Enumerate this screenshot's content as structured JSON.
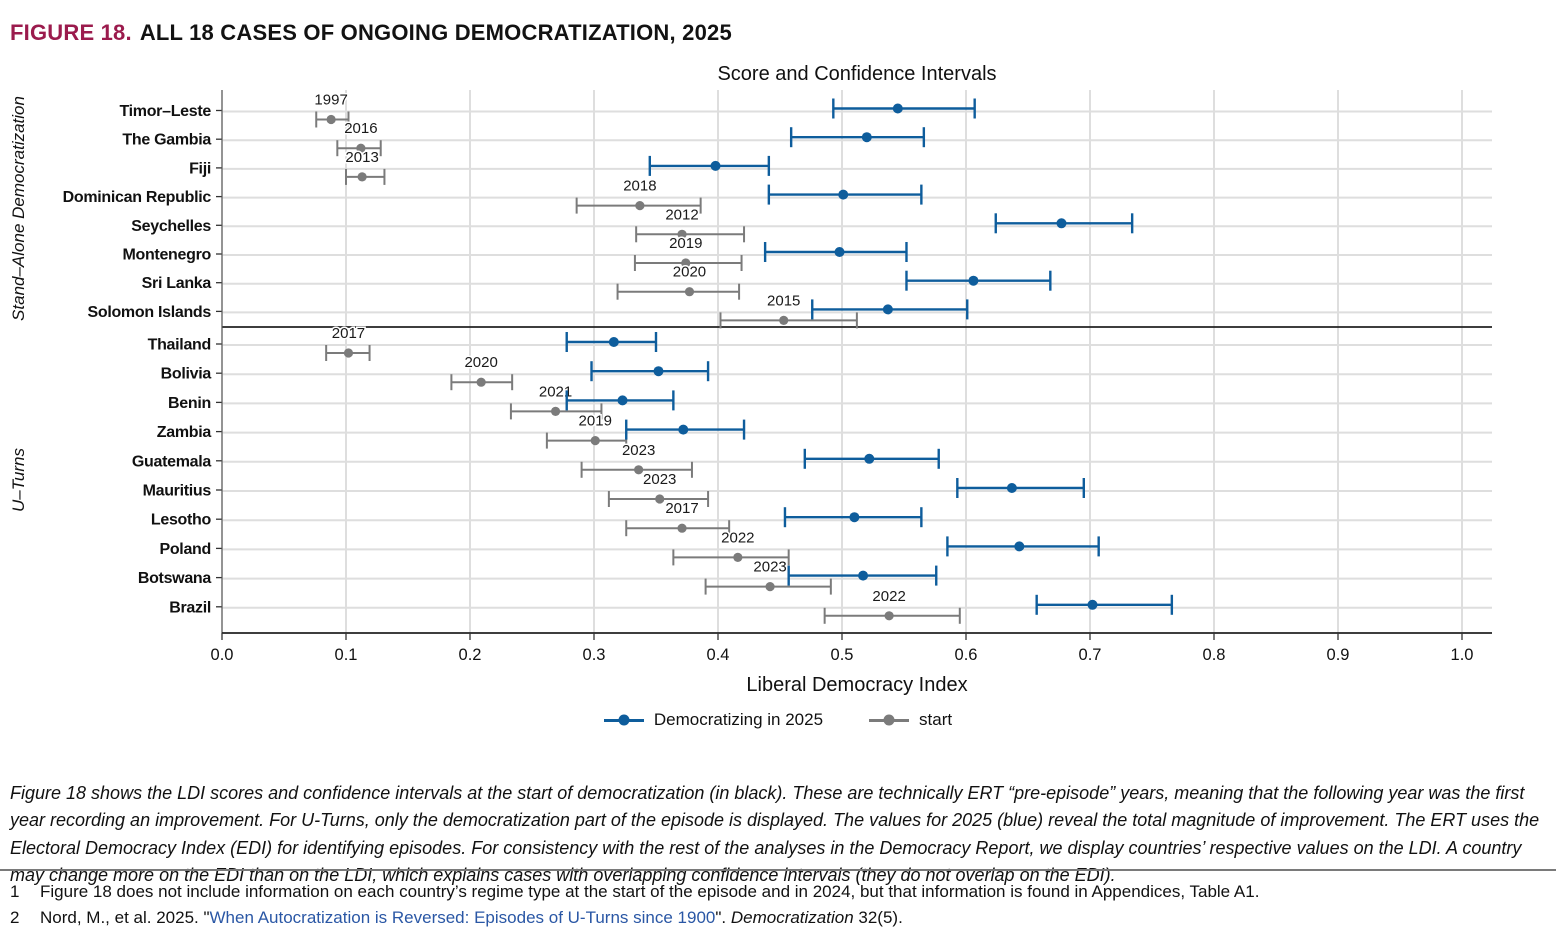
{
  "figure": {
    "label": "FIGURE 18.",
    "title": "ALL 18 CASES OF ONGOING DEMOCRATIZATION, 2025",
    "label_color": "#9b1b4d"
  },
  "chart_data": {
    "type": "scatter",
    "title": "Score and Confidence Intervals",
    "xlabel": "Liberal Democracy Index",
    "xlim": [
      0.0,
      1.0
    ],
    "x_ticks": [
      0.0,
      0.1,
      0.2,
      0.3,
      0.4,
      0.5,
      0.6,
      0.7,
      0.8,
      0.9,
      1.0
    ],
    "grid": true,
    "legend_position": "bottom",
    "legend": [
      {
        "label": "Democratizing in 2025",
        "color": "#0e5d9c"
      },
      {
        "label": "start",
        "color": "#7b7b7b"
      }
    ],
    "colors": {
      "democratizing": "#0e5d9c",
      "start": "#7b7b7b",
      "gridline_vertical": "#c9c9c9",
      "gridline_horizontal": "#dedede",
      "axis": "#222222"
    },
    "panels": [
      {
        "label": "Stand–Alone Democratization",
        "rows": [
          {
            "country": "Timor–Leste",
            "start_year": "1997",
            "start": 0.088,
            "start_ci": [
              0.076,
              0.102
            ],
            "now": 0.545,
            "now_ci": [
              0.493,
              0.607
            ]
          },
          {
            "country": "The Gambia",
            "start_year": "2016",
            "start": 0.112,
            "start_ci": [
              0.093,
              0.128
            ],
            "now": 0.52,
            "now_ci": [
              0.459,
              0.566
            ]
          },
          {
            "country": "Fiji",
            "start_year": "2013",
            "start": 0.113,
            "start_ci": [
              0.1,
              0.131
            ],
            "now": 0.398,
            "now_ci": [
              0.345,
              0.441
            ]
          },
          {
            "country": "Dominican Republic",
            "start_year": "2018",
            "start": 0.337,
            "start_ci": [
              0.286,
              0.386
            ],
            "now": 0.501,
            "now_ci": [
              0.441,
              0.564
            ]
          },
          {
            "country": "Seychelles",
            "start_year": "2012",
            "start": 0.371,
            "start_ci": [
              0.334,
              0.421
            ],
            "now": 0.677,
            "now_ci": [
              0.624,
              0.734
            ]
          },
          {
            "country": "Montenegro",
            "start_year": "2019",
            "start": 0.374,
            "start_ci": [
              0.333,
              0.419
            ],
            "now": 0.498,
            "now_ci": [
              0.438,
              0.552
            ]
          },
          {
            "country": "Sri Lanka",
            "start_year": "2020",
            "start": 0.377,
            "start_ci": [
              0.319,
              0.417
            ],
            "now": 0.606,
            "now_ci": [
              0.552,
              0.668
            ]
          },
          {
            "country": "Solomon Islands",
            "start_year": "2015",
            "start": 0.453,
            "start_ci": [
              0.402,
              0.512
            ],
            "now": 0.537,
            "now_ci": [
              0.476,
              0.601
            ]
          }
        ]
      },
      {
        "label": "U–Turns",
        "rows": [
          {
            "country": "Thailand",
            "start_year": "2017",
            "start": 0.102,
            "start_ci": [
              0.084,
              0.119
            ],
            "now": 0.316,
            "now_ci": [
              0.278,
              0.35
            ]
          },
          {
            "country": "Bolivia",
            "start_year": "2020",
            "start": 0.209,
            "start_ci": [
              0.185,
              0.234
            ],
            "now": 0.352,
            "now_ci": [
              0.298,
              0.392
            ]
          },
          {
            "country": "Benin",
            "start_year": "2021",
            "start": 0.269,
            "start_ci": [
              0.233,
              0.306
            ],
            "now": 0.323,
            "now_ci": [
              0.278,
              0.364
            ]
          },
          {
            "country": "Zambia",
            "start_year": "2019",
            "start": 0.301,
            "start_ci": [
              0.262,
              0.326
            ],
            "now": 0.372,
            "now_ci": [
              0.326,
              0.421
            ]
          },
          {
            "country": "Guatemala",
            "start_year": "2023",
            "start": 0.336,
            "start_ci": [
              0.29,
              0.379
            ],
            "now": 0.522,
            "now_ci": [
              0.47,
              0.578
            ]
          },
          {
            "country": "Mauritius",
            "start_year": "2023",
            "start": 0.353,
            "start_ci": [
              0.312,
              0.392
            ],
            "now": 0.637,
            "now_ci": [
              0.593,
              0.695
            ]
          },
          {
            "country": "Lesotho",
            "start_year": "2017",
            "start": 0.371,
            "start_ci": [
              0.326,
              0.409
            ],
            "now": 0.51,
            "now_ci": [
              0.454,
              0.564
            ]
          },
          {
            "country": "Poland",
            "start_year": "2022",
            "start": 0.416,
            "start_ci": [
              0.364,
              0.457
            ],
            "now": 0.643,
            "now_ci": [
              0.585,
              0.707
            ]
          },
          {
            "country": "Botswana",
            "start_year": "2023",
            "start": 0.442,
            "start_ci": [
              0.39,
              0.491
            ],
            "now": 0.517,
            "now_ci": [
              0.457,
              0.576
            ]
          },
          {
            "country": "Brazil",
            "start_year": "2022",
            "start": 0.538,
            "start_ci": [
              0.486,
              0.595
            ],
            "now": 0.702,
            "now_ci": [
              0.657,
              0.766
            ]
          }
        ]
      }
    ]
  },
  "caption": "Figure 18 shows the LDI scores and confidence intervals at the start of democratization (in black). These are technically ERT “pre-episode” years, meaning that the following year was the first year recording an improvement. For U-Turns, only the democratization part of the episode is displayed. The values for 2025 (blue) reveal the total magnitude of improvement. The ERT uses the Electoral Democracy Index (EDI) for identifying episodes. For consistency with the rest of the analyses in the Democracy Report, we display countries’ respective values on the LDI. A country may change more on the EDI than on the LDI, which explains cases with overlapping confidence intervals (they do not overlap on the EDI).",
  "footnotes": [
    {
      "num": "1",
      "text": "Figure 18 does not include information on each country’s regime type at the start of the episode and in 2024, but that information is found in Appendices, Table A1."
    },
    {
      "num": "2",
      "pre": "Nord, M., et al. 2025. \"",
      "link": "When Autocratization is Reversed: Episodes of U-Turns since 1900",
      "mid": "\". ",
      "italic": "Democratization",
      "post": " 32(5)."
    }
  ],
  "link_color": "#2a57a5"
}
